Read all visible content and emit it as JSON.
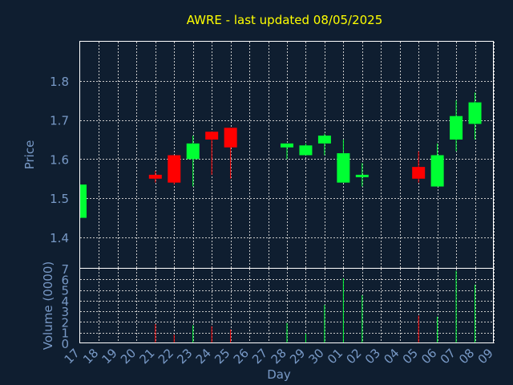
{
  "chart_data": {
    "type": "candlestick",
    "title": "AWRE - last updated 08/05/2025",
    "xlabel": "Day",
    "price_panel": {
      "ylabel": "Price",
      "ylim": [
        1.32,
        1.9
      ],
      "yticks": [
        1.4,
        1.5,
        1.6,
        1.7,
        1.8
      ],
      "ytick_labels": [
        "1.4",
        "1.5",
        "1.6",
        "1.7",
        "1.8"
      ],
      "grid": true
    },
    "volume_panel": {
      "ylabel": "Volume (0000)",
      "ylim": [
        0,
        7
      ],
      "yticks": [
        0,
        1,
        2,
        3,
        4,
        5,
        6,
        7
      ],
      "ytick_labels": [
        "0",
        "1",
        "2",
        "3",
        "4",
        "5",
        "6",
        "7"
      ],
      "grid": true
    },
    "colors": {
      "up": "#00ff33",
      "down": "#ff0000"
    },
    "x_tick_labels": [
      "17",
      "18",
      "19",
      "20",
      "21",
      "22",
      "23",
      "24",
      "25",
      "26",
      "27",
      "28",
      "29",
      "30",
      "01",
      "02",
      "03",
      "04",
      "05",
      "06",
      "07",
      "08",
      "09"
    ],
    "candles": [
      {
        "day": "17",
        "open": 1.45,
        "high": 1.535,
        "low": 1.45,
        "close": 1.535,
        "volume": 0
      },
      {
        "day": "21",
        "open": 1.56,
        "high": 1.57,
        "low": 1.54,
        "close": 1.55,
        "volume": 1.8
      },
      {
        "day": "22",
        "open": 1.61,
        "high": 1.61,
        "low": 1.535,
        "close": 1.54,
        "volume": 0.8
      },
      {
        "day": "23",
        "open": 1.6,
        "high": 1.66,
        "low": 1.53,
        "close": 1.64,
        "volume": 1.7
      },
      {
        "day": "24",
        "open": 1.67,
        "high": 1.67,
        "low": 1.56,
        "close": 1.65,
        "volume": 1.6
      },
      {
        "day": "25",
        "open": 1.68,
        "high": 1.68,
        "low": 1.55,
        "close": 1.63,
        "volume": 1.3
      },
      {
        "day": "28",
        "open": 1.63,
        "high": 1.64,
        "low": 1.6,
        "close": 1.64,
        "volume": 1.9
      },
      {
        "day": "29",
        "open": 1.61,
        "high": 1.64,
        "low": 1.61,
        "close": 1.635,
        "volume": 0.9
      },
      {
        "day": "30",
        "open": 1.64,
        "high": 1.665,
        "low": 1.61,
        "close": 1.66,
        "volume": 3.6
      },
      {
        "day": "01",
        "open": 1.54,
        "high": 1.65,
        "low": 1.54,
        "close": 1.615,
        "volume": 6.1
      },
      {
        "day": "02",
        "open": 1.555,
        "high": 1.59,
        "low": 1.53,
        "close": 1.56,
        "volume": 4.5
      },
      {
        "day": "05",
        "open": 1.58,
        "high": 1.62,
        "low": 1.54,
        "close": 1.55,
        "volume": 2.6
      },
      {
        "day": "06",
        "open": 1.53,
        "high": 1.64,
        "low": 1.53,
        "close": 1.61,
        "volume": 2.5
      },
      {
        "day": "07",
        "open": 1.65,
        "high": 1.75,
        "low": 1.62,
        "close": 1.71,
        "volume": 6.8
      },
      {
        "day": "08",
        "open": 1.69,
        "high": 1.77,
        "low": 1.65,
        "close": 1.745,
        "volume": 5.5
      }
    ]
  }
}
